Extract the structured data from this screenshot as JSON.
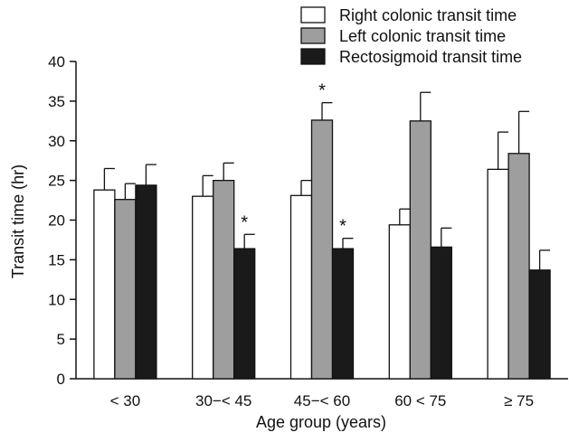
{
  "chart_data": {
    "type": "bar",
    "title": "",
    "xlabel": "Age group (years)",
    "ylabel": "Transit time (hr)",
    "ylim": [
      0,
      40
    ],
    "yticks": [
      0,
      5,
      10,
      15,
      20,
      25,
      30,
      35,
      40
    ],
    "categories": [
      "< 30",
      "30−< 45",
      "45−< 60",
      "60 < 75",
      "≥ 75"
    ],
    "legend_position": "top-right",
    "grid": false,
    "series": [
      {
        "name": "Right colonic transit time",
        "color": "#ffffff",
        "values": [
          23.8,
          23.0,
          23.1,
          19.4,
          26.4
        ],
        "errors": [
          2.7,
          2.6,
          1.9,
          2.0,
          4.7
        ],
        "significant": [
          false,
          false,
          false,
          false,
          false
        ]
      },
      {
        "name": "Left colonic transit time",
        "color": "#9e9e9e",
        "values": [
          22.6,
          25.0,
          32.6,
          32.5,
          28.4
        ],
        "errors": [
          2.0,
          2.2,
          2.2,
          3.6,
          5.3
        ],
        "significant": [
          false,
          false,
          true,
          false,
          false
        ]
      },
      {
        "name": "Rectosigmoid transit time",
        "color": "#1a1a1a",
        "values": [
          24.4,
          16.4,
          16.4,
          16.6,
          13.7
        ],
        "errors": [
          2.6,
          1.8,
          1.3,
          2.4,
          2.5
        ],
        "significant": [
          false,
          true,
          true,
          false,
          false
        ]
      }
    ],
    "significance_marker": "*"
  }
}
